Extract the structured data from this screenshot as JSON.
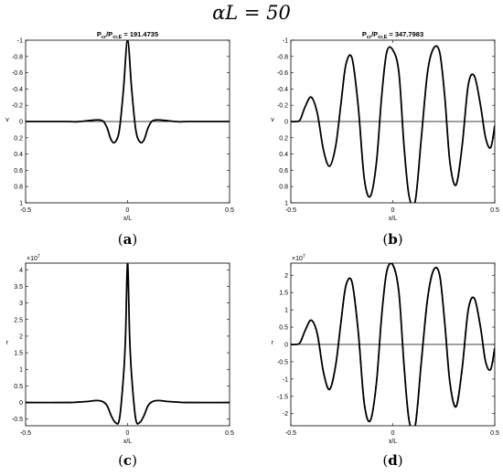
{
  "figure_title": "αL = 50",
  "chart_data": [
    {
      "type": "line",
      "panel_label": "a",
      "title": "P_cr/P_cr,E = 191.4735",
      "title_main": "P",
      "title_sub1": "cr",
      "title_mid": "/P",
      "title_sub2": "cr,E",
      "title_value": " = 191.4735",
      "xlabel": "x/L",
      "ylabel": "v",
      "xlim": [
        -0.5,
        0.5
      ],
      "ylim": [
        -1,
        1
      ],
      "y_reversed": true,
      "y_exponent": "",
      "xticks": [
        -0.5,
        0,
        0.5
      ],
      "xtick_labels": [
        "-0.5",
        "0",
        "0.5"
      ],
      "yticks": [
        -1,
        -0.8,
        -0.6,
        -0.4,
        -0.2,
        0,
        0.2,
        0.4,
        0.6,
        0.8,
        1
      ],
      "ytick_labels": [
        "-1",
        "-0.8",
        "-0.6",
        "-0.4",
        "-0.2",
        "0",
        "0.2",
        "0.4",
        "0.6",
        "0.8",
        "1"
      ],
      "baseline": true,
      "step_overlay": false,
      "x": [
        -0.5,
        -0.3,
        -0.25,
        -0.2,
        -0.15,
        -0.12,
        -0.1,
        -0.08,
        -0.06,
        -0.04,
        -0.02,
        0,
        0.02,
        0.04,
        0.06,
        0.08,
        0.1,
        0.12,
        0.15,
        0.2,
        0.25,
        0.3,
        0.5
      ],
      "y": [
        0,
        0,
        0.003,
        -0.008,
        -0.02,
        -0.005,
        0.08,
        0.23,
        0.25,
        0.1,
        -0.4,
        -1.0,
        -0.4,
        0.1,
        0.25,
        0.23,
        0.08,
        -0.005,
        -0.02,
        -0.008,
        0.003,
        0,
        0
      ]
    },
    {
      "type": "line",
      "panel_label": "b",
      "title": "P_cr/P_cr,E = 347.7983",
      "title_main": "P",
      "title_sub1": "cr",
      "title_mid": "/P",
      "title_sub2": "cr,E",
      "title_value": " = 347.7983",
      "xlabel": "x/L",
      "ylabel": "v",
      "xlim": [
        -0.5,
        0.5
      ],
      "ylim": [
        -1,
        1
      ],
      "y_reversed": true,
      "y_exponent": "",
      "xticks": [
        -0.5,
        0,
        0.5
      ],
      "xtick_labels": [
        "-0.5",
        "0",
        "0.5"
      ],
      "yticks": [
        -1,
        -0.8,
        -0.6,
        -0.4,
        -0.2,
        0,
        0.2,
        0.4,
        0.6,
        0.8,
        1
      ],
      "ytick_labels": [
        "-1",
        "-0.8",
        "-0.6",
        "-0.4",
        "-0.2",
        "0",
        "0.2",
        "0.4",
        "0.6",
        "0.8",
        "1"
      ],
      "baseline": true,
      "step_overlay": false,
      "x": [
        -0.5,
        -0.48,
        -0.455,
        -0.43,
        -0.4,
        -0.37,
        -0.34,
        -0.31,
        -0.28,
        -0.255,
        -0.23,
        -0.2,
        -0.17,
        -0.14,
        -0.11,
        -0.08,
        -0.055,
        -0.03,
        0,
        0.03,
        0.055,
        0.08,
        0.11,
        0.14,
        0.17,
        0.2,
        0.23,
        0.255,
        0.28,
        0.31,
        0.34,
        0.37,
        0.4,
        0.43,
        0.455,
        0.48,
        0.5
      ],
      "y": [
        0,
        0,
        -0.02,
        -0.18,
        -0.3,
        -0.1,
        0.35,
        0.55,
        0.3,
        -0.2,
        -0.7,
        -0.78,
        -0.2,
        0.7,
        0.92,
        0.5,
        -0.3,
        -0.85,
        -0.88,
        -0.6,
        0.3,
        0.92,
        0.98,
        0.2,
        -0.6,
        -0.9,
        -0.85,
        -0.3,
        0.5,
        0.78,
        0.3,
        -0.45,
        -0.56,
        -0.2,
        0.2,
        0.32,
        0.05
      ]
    },
    {
      "type": "line",
      "panel_label": "c",
      "title": "",
      "xlabel": "x/L",
      "ylabel": "r",
      "xlim": [
        -0.5,
        0.5
      ],
      "ylim": [
        -0.7,
        4.2
      ],
      "y_reversed": false,
      "y_exponent": "7",
      "xticks": [
        -0.5,
        0,
        0.5
      ],
      "xtick_labels": [
        "-0.5",
        "0",
        "0.5"
      ],
      "yticks": [
        -0.5,
        0,
        0.5,
        1,
        1.5,
        2,
        2.5,
        3,
        3.5,
        4
      ],
      "ytick_labels": [
        "-0.5",
        "0",
        "0.5",
        "1",
        "1.5",
        "2",
        "2.5",
        "3",
        "3.5",
        "4"
      ],
      "baseline": false,
      "step_overlay": true,
      "x": [
        -0.5,
        -0.3,
        -0.25,
        -0.2,
        -0.15,
        -0.12,
        -0.1,
        -0.08,
        -0.06,
        -0.04,
        -0.02,
        -0.01,
        0,
        0.01,
        0.02,
        0.04,
        0.06,
        0.08,
        0.1,
        0.12,
        0.15,
        0.2,
        0.25,
        0.3,
        0.5
      ],
      "y": [
        0,
        0,
        0.01,
        0.03,
        0.06,
        0.02,
        -0.1,
        -0.4,
        -0.6,
        -0.5,
        0.8,
        2.0,
        4.2,
        2.0,
        0.8,
        -0.5,
        -0.6,
        -0.4,
        -0.1,
        0.02,
        0.06,
        0.03,
        0.01,
        0,
        0
      ]
    },
    {
      "type": "line",
      "panel_label": "d",
      "title": "",
      "xlabel": "x/L",
      "ylabel": "r",
      "xlim": [
        -0.5,
        0.5
      ],
      "ylim": [
        -2.35,
        2.35
      ],
      "y_reversed": false,
      "y_exponent": "7",
      "xticks": [
        -0.5,
        0,
        0.5
      ],
      "xtick_labels": [
        "-0.5",
        "0",
        "0.5"
      ],
      "yticks": [
        -2,
        -1.5,
        -1,
        -0.5,
        0,
        0.5,
        1,
        1.5,
        2
      ],
      "ytick_labels": [
        "-2",
        "-1.5",
        "-1",
        "-0.5",
        "0",
        "0.5",
        "1",
        "1.5",
        "2"
      ],
      "baseline": true,
      "step_overlay": true,
      "x": [
        -0.5,
        -0.48,
        -0.455,
        -0.43,
        -0.4,
        -0.37,
        -0.34,
        -0.31,
        -0.28,
        -0.255,
        -0.23,
        -0.2,
        -0.17,
        -0.14,
        -0.11,
        -0.08,
        -0.055,
        -0.03,
        0,
        0.03,
        0.055,
        0.08,
        0.11,
        0.14,
        0.17,
        0.2,
        0.23,
        0.255,
        0.28,
        0.31,
        0.34,
        0.37,
        0.4,
        0.43,
        0.455,
        0.48,
        0.5
      ],
      "y": [
        0,
        0,
        0.05,
        0.4,
        0.7,
        0.3,
        -0.8,
        -1.3,
        -0.6,
        0.6,
        1.7,
        1.8,
        0.4,
        -1.7,
        -2.2,
        -1.1,
        0.8,
        2.1,
        2.3,
        1.5,
        -0.6,
        -2.2,
        -2.35,
        -0.5,
        1.3,
        2.15,
        2.0,
        0.6,
        -1.1,
        -1.8,
        -0.7,
        1.0,
        1.33,
        0.5,
        -0.5,
        -0.72,
        -0.1
      ]
    }
  ]
}
